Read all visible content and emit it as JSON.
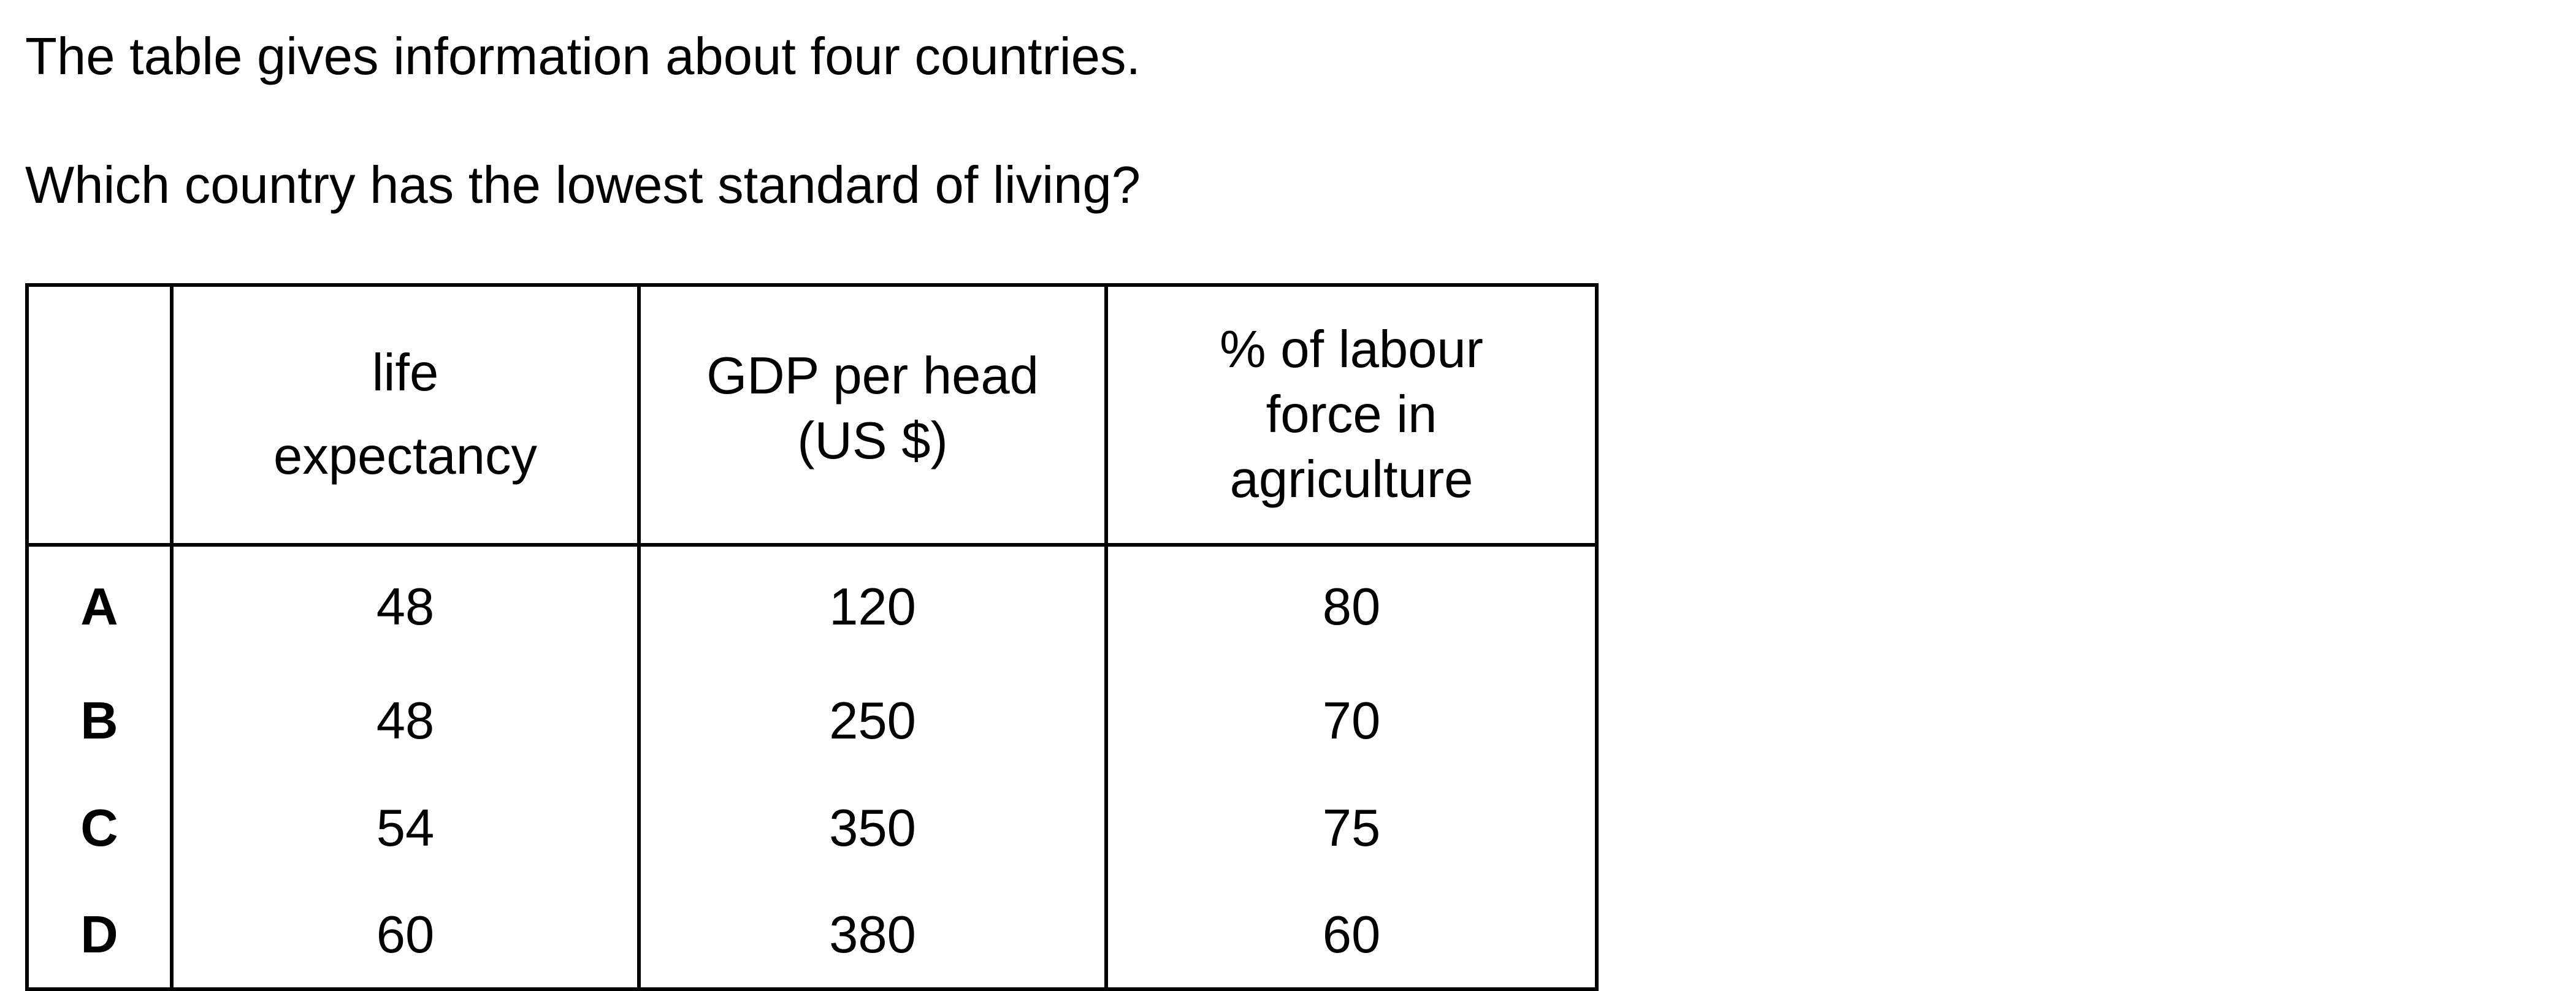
{
  "intro": "The table gives information about four countries.",
  "question": "Which country has the lowest standard of living?",
  "table": {
    "corner": "",
    "headers": {
      "life": [
        "life",
        "expectancy"
      ],
      "gdp": [
        "GDP per head",
        "(US $)"
      ],
      "labour": [
        "% of labour",
        "force in",
        "agriculture"
      ]
    },
    "rows": [
      {
        "label": "A",
        "life": "48",
        "gdp": "120",
        "labour": "80"
      },
      {
        "label": "B",
        "life": "48",
        "gdp": "250",
        "labour": "70"
      },
      {
        "label": "C",
        "life": "54",
        "gdp": "350",
        "labour": "75"
      },
      {
        "label": "D",
        "life": "60",
        "gdp": "380",
        "labour": "60"
      }
    ]
  }
}
